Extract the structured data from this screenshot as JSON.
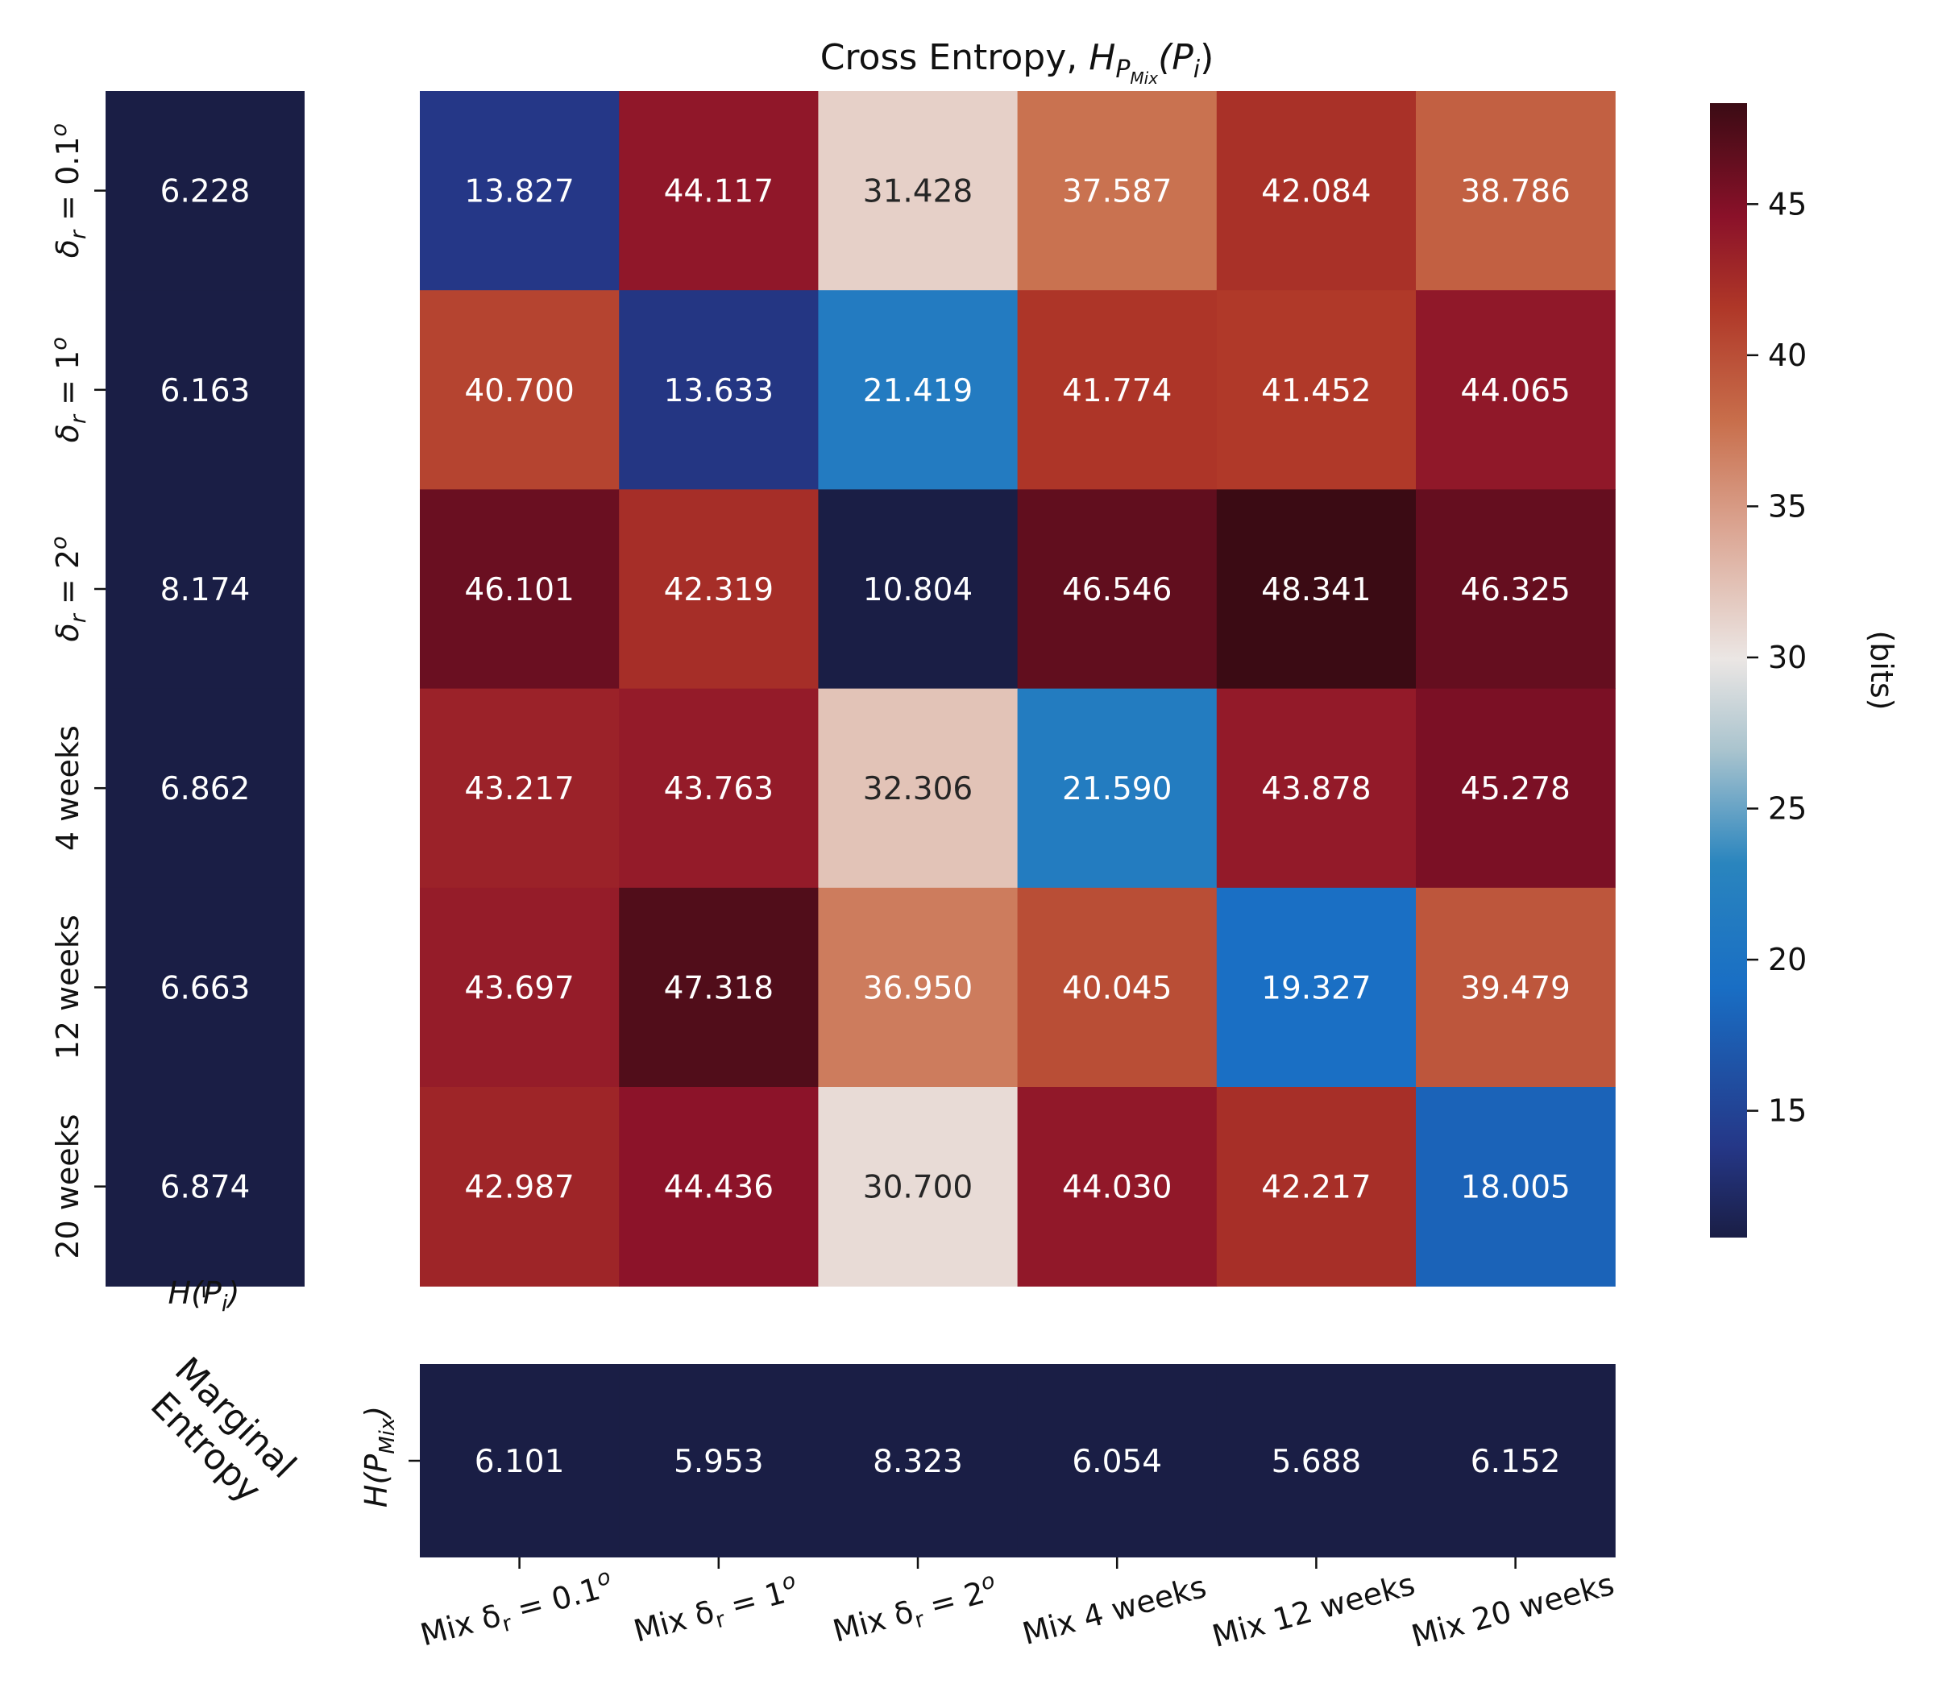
{
  "chart_data": [
    {
      "type": "heatmap",
      "title": "Cross Entropy, H_{P_Mix}(P_i)",
      "title_parts": {
        "prefix": "Cross Entropy, ",
        "H": "H",
        "P": "P",
        "Mix": "Mix",
        "arg": "(P",
        "i": "i",
        "close": ")"
      },
      "row_labels": [
        {
          "base": "δ",
          "sub": "r",
          "eq": " = 0.1",
          "sup": "o"
        },
        {
          "base": "δ",
          "sub": "r",
          "eq": " = 1",
          "sup": "o"
        },
        {
          "base": "δ",
          "sub": "r",
          "eq": " = 2",
          "sup": "o"
        },
        {
          "text": "4 weeks"
        },
        {
          "text": "12 weeks"
        },
        {
          "text": "20 weeks"
        }
      ],
      "col_labels": [
        {
          "pre": "Mix δ",
          "sub": "r",
          "eq": " = 0.1",
          "sup": "o"
        },
        {
          "pre": "Mix δ",
          "sub": "r",
          "eq": " = 1",
          "sup": "o"
        },
        {
          "pre": "Mix δ",
          "sub": "r",
          "eq": " = 2",
          "sup": "o"
        },
        {
          "text": "Mix 4 weeks"
        },
        {
          "text": "Mix 12 weeks"
        },
        {
          "text": "Mix 20 weeks"
        }
      ],
      "values": [
        [
          13.827,
          44.117,
          31.428,
          37.587,
          42.084,
          38.786
        ],
        [
          40.7,
          13.633,
          21.419,
          41.774,
          41.452,
          44.065
        ],
        [
          46.101,
          42.319,
          10.804,
          46.546,
          48.341,
          46.325
        ],
        [
          43.217,
          43.763,
          32.306,
          21.59,
          43.878,
          45.278
        ],
        [
          43.697,
          47.318,
          36.95,
          40.045,
          19.327,
          39.479
        ],
        [
          42.987,
          44.436,
          30.7,
          44.03,
          42.217,
          18.005
        ]
      ],
      "value_labels": [
        [
          "13.827",
          "44.117",
          "31.428",
          "37.587",
          "42.084",
          "38.786"
        ],
        [
          "40.700",
          "13.633",
          "21.419",
          "41.774",
          "41.452",
          "44.065"
        ],
        [
          "46.101",
          "42.319",
          "10.804",
          "46.546",
          "48.341",
          "46.325"
        ],
        [
          "43.217",
          "43.763",
          "32.306",
          "21.590",
          "43.878",
          "45.278"
        ],
        [
          "43.697",
          "47.318",
          "36.950",
          "40.045",
          "19.327",
          "39.479"
        ],
        [
          "42.987",
          "44.436",
          "30.700",
          "44.030",
          "42.217",
          "18.005"
        ]
      ],
      "colormap": "icefire",
      "vmin": 10.804,
      "vmax": 48.341,
      "colorbar": {
        "label": "(bits)",
        "ticks": [
          15,
          20,
          25,
          30,
          35,
          40,
          45
        ]
      }
    },
    {
      "type": "heatmap",
      "xlabel": "H(P_i)",
      "xlabel_parts": {
        "H": "H(P",
        "i": "i",
        "close": ")"
      },
      "values": [
        6.228,
        6.163,
        8.174,
        6.862,
        6.663,
        6.874
      ],
      "value_labels": [
        "6.228",
        "6.163",
        "8.174",
        "6.862",
        "6.663",
        "6.874"
      ]
    },
    {
      "type": "heatmap",
      "ylabel": "H(P_Mix)",
      "ylabel_parts": {
        "H": "H(P",
        "Mix": "Mix",
        "close": ")"
      },
      "values": [
        6.101,
        5.953,
        8.323,
        6.054,
        5.688,
        6.152
      ],
      "value_labels": [
        "6.101",
        "5.953",
        "8.323",
        "6.054",
        "5.688",
        "6.152"
      ]
    }
  ],
  "side_label": [
    "Marginal",
    "Entropy"
  ],
  "colors": {
    "entropy_cell": "#1A1E45",
    "cell_text_light": "#ffffff",
    "cell_text_dark": "#262626",
    "axis": "#111111"
  }
}
